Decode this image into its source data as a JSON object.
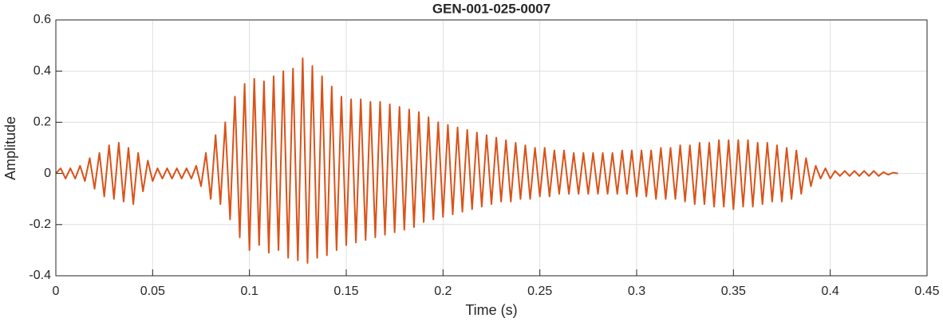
{
  "chart_data": {
    "type": "line",
    "title": "GEN-001-025-0007",
    "x_label": "Time (s)",
    "y_label": "Amplitude",
    "color": "#D95319",
    "grid": true,
    "xlim": [
      0,
      0.45
    ],
    "xticks": [
      0,
      0.05,
      0.1,
      0.15,
      0.2,
      0.25,
      0.3,
      0.35,
      0.4,
      0.45
    ],
    "ylim": [
      -0.4,
      0.6
    ],
    "yticks": [
      -0.4,
      -0.2,
      0,
      0.2,
      0.4,
      0.6
    ],
    "x": [
      0,
      0.0025,
      0.005,
      0.0075,
      0.01,
      0.0125,
      0.015,
      0.0175,
      0.02,
      0.0225,
      0.025,
      0.0275,
      0.03,
      0.0325,
      0.035,
      0.0375,
      0.04,
      0.0425,
      0.045,
      0.0475,
      0.05,
      0.0525,
      0.055,
      0.0575,
      0.06,
      0.0625,
      0.065,
      0.0675,
      0.07,
      0.0725,
      0.075,
      0.0775,
      0.08,
      0.0825,
      0.085,
      0.0875,
      0.09,
      0.0925,
      0.095,
      0.0975,
      0.1,
      0.1025,
      0.105,
      0.1075,
      0.11,
      0.1125,
      0.115,
      0.1175,
      0.12,
      0.1225,
      0.125,
      0.1275,
      0.13,
      0.1325,
      0.135,
      0.1375,
      0.14,
      0.1425,
      0.145,
      0.1475,
      0.15,
      0.1525,
      0.155,
      0.1575,
      0.16,
      0.1625,
      0.165,
      0.1675,
      0.17,
      0.1725,
      0.175,
      0.1775,
      0.18,
      0.1825,
      0.185,
      0.1875,
      0.19,
      0.1925,
      0.195,
      0.1975,
      0.2,
      0.2025,
      0.205,
      0.2075,
      0.21,
      0.2125,
      0.215,
      0.2175,
      0.22,
      0.2225,
      0.225,
      0.2275,
      0.23,
      0.2325,
      0.235,
      0.2375,
      0.24,
      0.2425,
      0.245,
      0.2475,
      0.25,
      0.2525,
      0.255,
      0.2575,
      0.26,
      0.2625,
      0.265,
      0.2675,
      0.27,
      0.2725,
      0.275,
      0.2775,
      0.28,
      0.2825,
      0.285,
      0.2875,
      0.29,
      0.2925,
      0.295,
      0.2975,
      0.3,
      0.3025,
      0.305,
      0.3075,
      0.31,
      0.3125,
      0.315,
      0.3175,
      0.32,
      0.3225,
      0.325,
      0.3275,
      0.33,
      0.3325,
      0.335,
      0.3375,
      0.34,
      0.3425,
      0.345,
      0.3475,
      0.35,
      0.3525,
      0.355,
      0.3575,
      0.36,
      0.3625,
      0.365,
      0.3675,
      0.37,
      0.3725,
      0.375,
      0.3775,
      0.38,
      0.3825,
      0.385,
      0.3875,
      0.39,
      0.3925,
      0.395,
      0.3975,
      0.4,
      0.4025,
      0.405,
      0.4075,
      0.41,
      0.4125,
      0.415,
      0.4175,
      0.42,
      0.4225,
      0.425,
      0.4275,
      0.43,
      0.4325,
      0.435
    ],
    "values": [
      0,
      0.02,
      -0.02,
      0.02,
      -0.02,
      0.03,
      -0.03,
      0.06,
      -0.06,
      0.08,
      -0.09,
      0.11,
      -0.1,
      0.12,
      -0.11,
      0.1,
      -0.12,
      0.08,
      -0.07,
      0.05,
      -0.03,
      0.02,
      -0.02,
      0.02,
      -0.02,
      0.02,
      -0.02,
      0.02,
      -0.02,
      0.03,
      -0.05,
      0.08,
      -0.1,
      0.15,
      -0.12,
      0.2,
      -0.18,
      0.3,
      -0.25,
      0.35,
      -0.3,
      0.37,
      -0.28,
      0.36,
      -0.31,
      0.38,
      -0.3,
      0.4,
      -0.33,
      0.41,
      -0.34,
      0.45,
      -0.35,
      0.42,
      -0.33,
      0.38,
      -0.32,
      0.34,
      -0.3,
      0.3,
      -0.28,
      0.29,
      -0.27,
      0.29,
      -0.26,
      0.28,
      -0.25,
      0.28,
      -0.24,
      0.27,
      -0.23,
      0.26,
      -0.22,
      0.25,
      -0.21,
      0.24,
      -0.19,
      0.22,
      -0.18,
      0.2,
      -0.17,
      0.19,
      -0.16,
      0.18,
      -0.15,
      0.17,
      -0.14,
      0.16,
      -0.13,
      0.15,
      -0.12,
      0.14,
      -0.11,
      0.13,
      -0.11,
      0.12,
      -0.1,
      0.11,
      -0.1,
      0.1,
      -0.09,
      0.1,
      -0.09,
      0.09,
      -0.08,
      0.09,
      -0.08,
      0.08,
      -0.08,
      0.08,
      -0.08,
      0.08,
      -0.08,
      0.08,
      -0.08,
      0.08,
      -0.08,
      0.09,
      -0.08,
      0.09,
      -0.09,
      0.09,
      -0.09,
      0.09,
      -0.1,
      0.1,
      -0.1,
      0.1,
      -0.1,
      0.11,
      -0.11,
      0.11,
      -0.12,
      0.12,
      -0.12,
      0.12,
      -0.13,
      0.13,
      -0.13,
      0.13,
      -0.14,
      0.13,
      -0.13,
      0.13,
      -0.13,
      0.12,
      -0.12,
      0.12,
      -0.11,
      0.11,
      -0.11,
      0.1,
      -0.1,
      0.09,
      -0.08,
      0.06,
      -0.05,
      0.03,
      -0.02,
      0.02,
      -0.02,
      0.01,
      -0.01,
      0.01,
      -0.01,
      0.01,
      -0.01,
      0.01,
      -0.01,
      0.01,
      -0.01,
      0.005,
      -0.005,
      0.003,
      0
    ]
  }
}
